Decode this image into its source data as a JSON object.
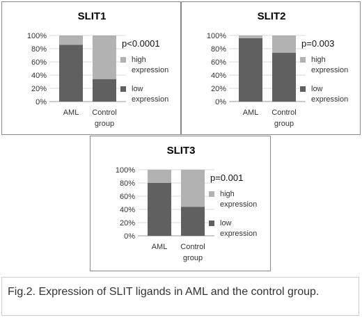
{
  "chart_data": [
    {
      "type": "bar",
      "stacked": true,
      "title": "SLIT1",
      "annotation": "p<0.0001",
      "categories": [
        "AML",
        [
          "Control",
          "group"
        ]
      ],
      "yticks": [
        "0%",
        "20%",
        "40%",
        "60%",
        "80%",
        "100%"
      ],
      "ylim": [
        0,
        100
      ],
      "series": [
        {
          "name": [
            "low",
            "expression"
          ],
          "color": "#606060",
          "values": [
            86,
            34
          ]
        },
        {
          "name": [
            "high",
            "expression"
          ],
          "color": "#b2b2b2",
          "values": [
            14,
            66
          ]
        }
      ]
    },
    {
      "type": "bar",
      "stacked": true,
      "title": "SLIT2",
      "annotation": "p=0.003",
      "categories": [
        "AML",
        [
          "Control",
          "group"
        ]
      ],
      "yticks": [
        "0%",
        "20%",
        "40%",
        "60%",
        "80%",
        "100%"
      ],
      "ylim": [
        0,
        100
      ],
      "series": [
        {
          "name": [
            "low",
            "expression"
          ],
          "color": "#606060",
          "values": [
            96,
            74
          ]
        },
        {
          "name": [
            "high",
            "expression"
          ],
          "color": "#b2b2b2",
          "values": [
            4,
            26
          ]
        }
      ]
    },
    {
      "type": "bar",
      "stacked": true,
      "title": "SLIT3",
      "annotation": "p=0.001",
      "categories": [
        "AML",
        [
          "Control",
          "group"
        ]
      ],
      "yticks": [
        "0%",
        "20%",
        "40%",
        "60%",
        "80%",
        "100%"
      ],
      "ylim": [
        0,
        100
      ],
      "series": [
        {
          "name": [
            "low",
            "expression"
          ],
          "color": "#606060",
          "values": [
            80,
            44
          ]
        },
        {
          "name": [
            "high",
            "expression"
          ],
          "color": "#b2b2b2",
          "values": [
            20,
            56
          ]
        }
      ]
    }
  ],
  "caption": "Fig.2. Expression of SLIT ligands in AML and the control group."
}
